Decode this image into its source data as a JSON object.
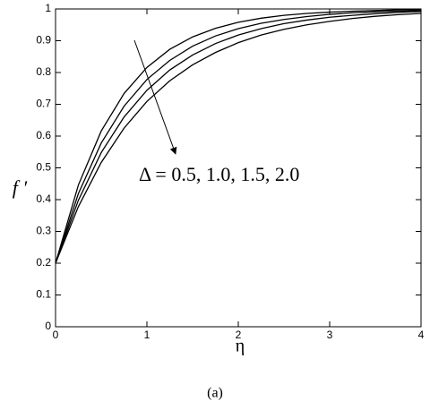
{
  "chart_data": {
    "type": "line",
    "xlabel": "η",
    "ylabel": "f ′",
    "annotation": "Δ = 0.5, 1.0, 1.5, 2.0",
    "caption": "(a)",
    "x": [
      0,
      0.25,
      0.5,
      0.75,
      1,
      1.25,
      1.5,
      1.75,
      2,
      2.25,
      2.5,
      2.75,
      3,
      3.25,
      3.5,
      3.75,
      4
    ],
    "series": [
      {
        "color": "#000000",
        "values": [
          0.2,
          0.446,
          0.616,
          0.734,
          0.816,
          0.873,
          0.912,
          0.939,
          0.958,
          0.971,
          0.98,
          0.986,
          0.99,
          0.993,
          0.995,
          0.997,
          0.998
        ]
      },
      {
        "color": "#000000",
        "values": [
          0.2,
          0.419,
          0.578,
          0.694,
          0.778,
          0.838,
          0.883,
          0.915,
          0.938,
          0.955,
          0.967,
          0.976,
          0.983,
          0.988,
          0.991,
          0.993,
          0.995
        ]
      },
      {
        "color": "#000000",
        "values": [
          0.2,
          0.398,
          0.548,
          0.66,
          0.744,
          0.808,
          0.855,
          0.891,
          0.918,
          0.938,
          0.954,
          0.965,
          0.974,
          0.98,
          0.985,
          0.989,
          0.992
        ]
      },
      {
        "color": "#000000",
        "values": [
          0.2,
          0.378,
          0.517,
          0.625,
          0.709,
          0.774,
          0.824,
          0.863,
          0.894,
          0.918,
          0.936,
          0.95,
          0.961,
          0.97,
          0.977,
          0.982,
          0.986
        ]
      }
    ],
    "xlim": [
      0,
      4
    ],
    "xticks": [
      0,
      1,
      2,
      3,
      4
    ],
    "ylim": [
      0,
      1
    ],
    "yticks": [
      0,
      0.1,
      0.2,
      0.3,
      0.4,
      0.5,
      0.6,
      0.7,
      0.8,
      0.9,
      1
    ],
    "grid": false
  }
}
